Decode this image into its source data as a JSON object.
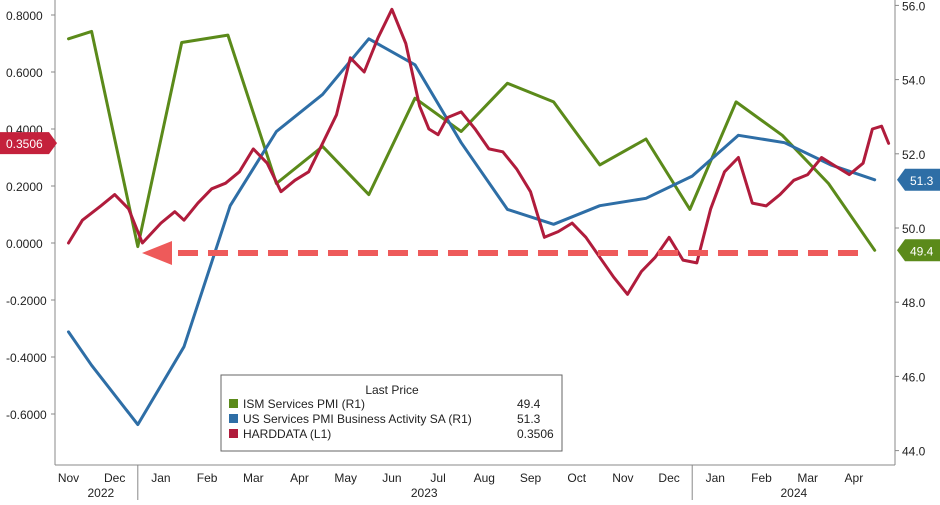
{
  "chart_data": {
    "type": "line",
    "x_labels": {
      "months": [
        "Nov",
        "Dec",
        "Jan",
        "Feb",
        "Mar",
        "Apr",
        "May",
        "Jun",
        "Jul",
        "Aug",
        "Sep",
        "Oct",
        "Nov",
        "Dec",
        "Jan",
        "Feb",
        "Mar",
        "Apr"
      ],
      "years": [
        "2022",
        "2023",
        "2024"
      ]
    },
    "left_axis": {
      "ticks": [
        "0.8000",
        "0.6000",
        "0.4000",
        "0.2000",
        "0.0000",
        "-0.2000",
        "-0.4000",
        "-0.6000"
      ],
      "ylim": [
        -0.7,
        0.85
      ]
    },
    "right_axis": {
      "ticks": [
        "56.0",
        "54.0",
        "52.0",
        "50.0",
        "48.0",
        "46.0",
        "44.0"
      ],
      "ylim": [
        43.9,
        56.1
      ]
    },
    "legend": {
      "title": "Last Price",
      "entries": [
        {
          "label": "ISM Services PMI  (R1)",
          "value": "49.4",
          "color": "#5b8a1a"
        },
        {
          "label": "US Services PMI Business Activity SA  (R1)",
          "value": "51.3",
          "color": "#2e6ea6"
        },
        {
          "label": "HARDDATA  (L1)",
          "value": "0.3506",
          "color": "#b01c3c"
        }
      ]
    },
    "last_value_tags": {
      "harddata": "0.3506",
      "us_services": "51.3",
      "ism_services": "49.4"
    },
    "annotation": "dashed red arrow pointing left at HARDDATA = 0.0000 level",
    "series": [
      {
        "name": "ISM Services PMI  (R1)",
        "axis": "right",
        "color": "#5b8a1a",
        "x": [
          0.0,
          0.5,
          1.5,
          2.45,
          3.45,
          4.5,
          5.5,
          6.5,
          7.5,
          8.5,
          9.5,
          10.5,
          11.5,
          12.5,
          13.45,
          14.45,
          15.45,
          16.45,
          17.45
        ],
        "y": [
          55.1,
          55.3,
          49.5,
          55.0,
          55.2,
          51.2,
          52.2,
          50.9,
          53.5,
          52.6,
          53.9,
          53.4,
          51.7,
          52.4,
          50.5,
          53.4,
          52.5,
          51.2,
          49.4
        ]
      },
      {
        "name": "US Services PMI Business Activity SA  (R1)",
        "axis": "right",
        "color": "#2e6ea6",
        "x": [
          0.0,
          0.5,
          1.5,
          2.5,
          3.5,
          4.5,
          5.5,
          6.5,
          7.5,
          8.5,
          9.5,
          10.5,
          11.5,
          12.5,
          13.5,
          14.5,
          15.5,
          16.5,
          17.45
        ],
        "y": [
          47.2,
          46.3,
          44.7,
          46.8,
          50.6,
          52.6,
          53.6,
          55.1,
          54.4,
          52.3,
          50.5,
          50.1,
          50.6,
          50.8,
          51.4,
          52.5,
          52.3,
          51.7,
          51.3
        ]
      },
      {
        "name": "HARDDATA  (L1)",
        "axis": "left",
        "color": "#b01c3c",
        "x": [
          0.0,
          0.3,
          0.7,
          1.0,
          1.3,
          1.6,
          2.0,
          2.3,
          2.5,
          2.8,
          3.1,
          3.4,
          3.7,
          4.0,
          4.3,
          4.6,
          4.9,
          5.2,
          5.5,
          5.8,
          6.1,
          6.4,
          6.7,
          7.0,
          7.3,
          7.6,
          7.8,
          8.0,
          8.2,
          8.5,
          8.8,
          9.1,
          9.4,
          9.7,
          10.0,
          10.3,
          10.6,
          10.9,
          11.2,
          11.5,
          11.8,
          12.1,
          12.4,
          12.7,
          13.0,
          13.3,
          13.6,
          13.9,
          14.2,
          14.5,
          14.8,
          15.1,
          15.4,
          15.7,
          16.0,
          16.3,
          16.6,
          16.9,
          17.2,
          17.4,
          17.6,
          17.75
        ],
        "y": [
          0.0,
          0.08,
          0.13,
          0.17,
          0.12,
          0.0,
          0.07,
          0.11,
          0.08,
          0.14,
          0.19,
          0.21,
          0.25,
          0.33,
          0.28,
          0.18,
          0.22,
          0.25,
          0.35,
          0.45,
          0.65,
          0.6,
          0.72,
          0.82,
          0.7,
          0.48,
          0.4,
          0.38,
          0.44,
          0.46,
          0.4,
          0.33,
          0.32,
          0.26,
          0.18,
          0.02,
          0.04,
          0.07,
          0.02,
          -0.05,
          -0.12,
          -0.18,
          -0.1,
          -0.05,
          0.02,
          -0.06,
          -0.07,
          0.12,
          0.25,
          0.3,
          0.14,
          0.13,
          0.17,
          0.22,
          0.24,
          0.3,
          0.27,
          0.24,
          0.28,
          0.4,
          0.41,
          0.35
        ]
      }
    ]
  }
}
